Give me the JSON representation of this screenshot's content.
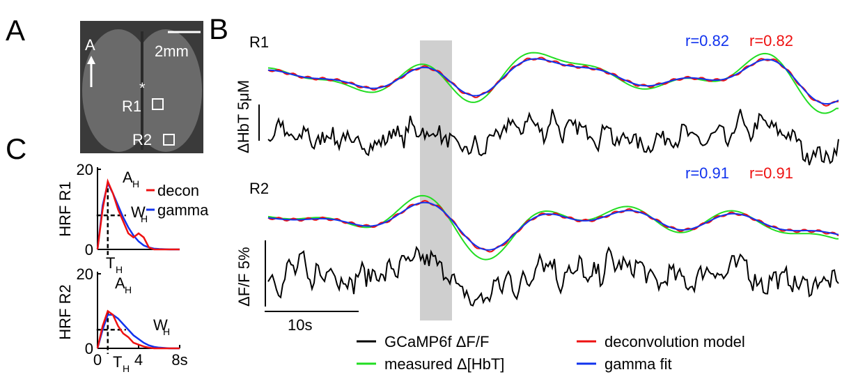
{
  "panel_labels": [
    "A",
    "B",
    "C"
  ],
  "panel_a": {
    "orientation": "A",
    "scale": "2mm",
    "marker": "*",
    "regions": [
      "R1",
      "R2"
    ]
  },
  "panel_b": {
    "rows": [
      {
        "label": "R1",
        "r_gamma": "r=0.82",
        "r_decon": "r=0.82"
      },
      {
        "label": "R2",
        "r_gamma": "r=0.91",
        "r_decon": "r=0.91"
      }
    ],
    "scale_hbt": "ΔHbT 5μM",
    "scale_dff": "ΔF/F 5%",
    "scale_time": "10s",
    "legend": [
      {
        "name": "GCaMP6f ΔF/F",
        "color": "#000000"
      },
      {
        "name": "measured Δ[HbT]",
        "color": "#22dd22"
      },
      {
        "name": "deconvolution model",
        "color": "#ee1111"
      },
      {
        "name": "gamma fit",
        "color": "#1133ee"
      }
    ]
  },
  "chart_data": [
    {
      "type": "line",
      "y_label": "HRF R1",
      "x": [
        0,
        0.5,
        1,
        1.5,
        2,
        2.5,
        3,
        3.5,
        4,
        4.5,
        5,
        5.5,
        6,
        7,
        8
      ],
      "series": [
        {
          "name": "decon",
          "color": "#ee1111",
          "values": [
            0,
            10,
            17,
            14,
            10,
            7,
            4,
            3,
            4,
            3,
            0.5,
            0,
            0,
            0,
            0
          ]
        },
        {
          "name": "gamma",
          "color": "#1133ee",
          "values": [
            0,
            11,
            16.5,
            14,
            11,
            8,
            5.5,
            3.5,
            2,
            1,
            0.5,
            0.2,
            0.1,
            0,
            0
          ]
        }
      ],
      "xlim": [
        0,
        8
      ],
      "ylim": [
        0,
        20
      ],
      "yticks": [
        0,
        20
      ],
      "xticks": [],
      "legend": true,
      "annotations": [
        {
          "main": "A",
          "sub": "H"
        },
        {
          "main": "W",
          "sub": "H"
        },
        {
          "main": "T",
          "sub": "H"
        }
      ]
    },
    {
      "type": "line",
      "y_label": "HRF R2",
      "x": [
        0,
        0.5,
        1,
        1.5,
        2,
        2.5,
        3,
        3.5,
        4,
        4.5,
        5,
        5.5,
        6,
        7,
        8
      ],
      "series": [
        {
          "name": "decon",
          "color": "#ee1111",
          "values": [
            0,
            6,
            10,
            9,
            6,
            4,
            3,
            1.5,
            1,
            0.5,
            0.2,
            0,
            0,
            0,
            0
          ]
        },
        {
          "name": "gamma",
          "color": "#1133ee",
          "values": [
            0,
            5,
            9,
            9,
            8,
            6.5,
            5,
            3.5,
            2.5,
            1.5,
            0.8,
            0.4,
            0.2,
            0,
            0
          ]
        }
      ],
      "xlim": [
        0,
        8
      ],
      "ylim": [
        0,
        20
      ],
      "yticks": [
        0,
        20
      ],
      "xticks": [
        0,
        4,
        {
          "value": 8,
          "label": "8s"
        }
      ],
      "legend": false,
      "annotations": [
        {
          "main": "A",
          "sub": "H"
        },
        {
          "main": "W",
          "sub": "H"
        },
        {
          "main": "T",
          "sub": "H"
        }
      ]
    }
  ]
}
